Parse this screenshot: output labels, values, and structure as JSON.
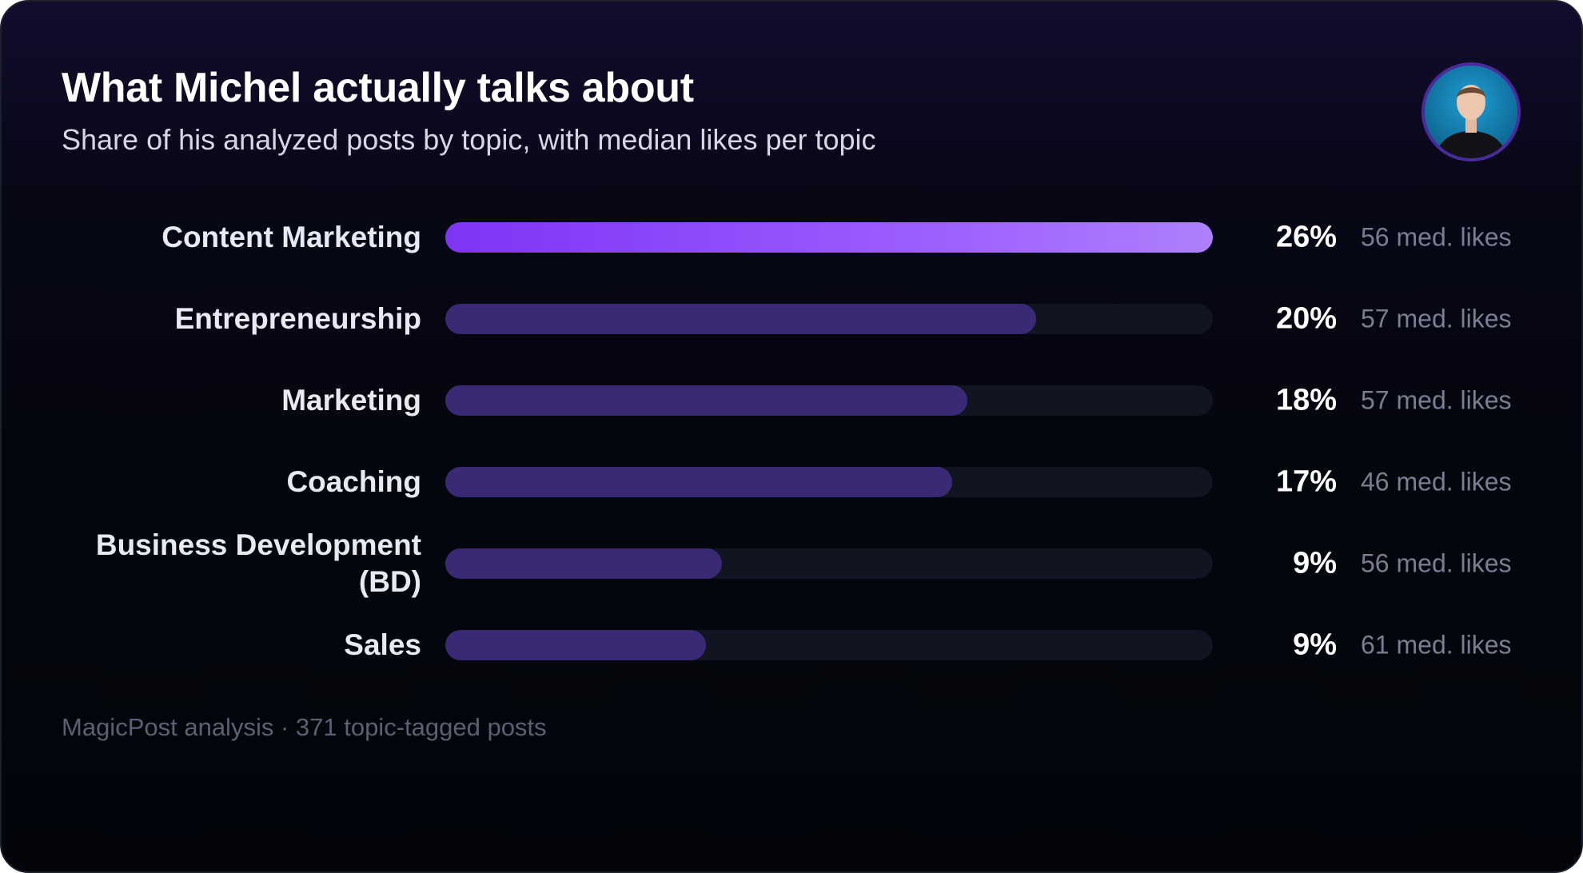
{
  "header": {
    "title": "What Michel actually talks about",
    "subtitle": "Share of his analyzed posts by topic, with median likes per topic"
  },
  "colors": {
    "accent_gradient_start": "#7f34f4",
    "accent_gradient_end": "#ad80fb",
    "bar_fill": "#3a2a75",
    "bar_track": "#111421",
    "avatar_ring": "#4a2a9c"
  },
  "avatar": {
    "icon": "person-avatar-icon"
  },
  "chart_data": {
    "type": "bar",
    "orientation": "horizontal",
    "categories": [
      "Content Marketing",
      "Entrepreneurship",
      "Marketing",
      "Coaching",
      "Business Development (BD)",
      "Sales"
    ],
    "values": [
      26,
      20,
      18,
      17,
      9,
      9
    ],
    "value_labels": [
      "26%",
      "20%",
      "18%",
      "17%",
      "9%",
      "9%"
    ],
    "median_likes": [
      56,
      57,
      57,
      46,
      56,
      61
    ],
    "median_likes_labels": [
      "56 med. likes",
      "57 med. likes",
      "57 med. likes",
      "46 med. likes",
      "56 med. likes",
      "61 med. likes"
    ],
    "fill_fraction": [
      1.0,
      0.77,
      0.68,
      0.66,
      0.36,
      0.34
    ],
    "highlighted_index": 0,
    "grid": false,
    "legend": false
  },
  "footer": {
    "source": "MagicPost analysis · 371 topic-tagged posts"
  }
}
